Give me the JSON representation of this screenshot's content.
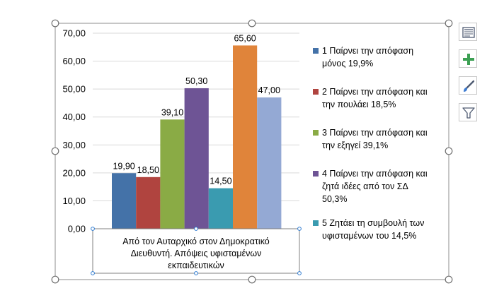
{
  "chart_data": {
    "type": "bar",
    "categories": [
      "Από τον Αυταρχικό στον Δημοκρατικό Διευθυντή. Απόψεις υφισταμένων εκπαιδευτικών"
    ],
    "category_lines": [
      "Από τον Αυταρχικό στον Δημοκρατικό",
      "Διευθυντή. Απόψεις υφισταμένων",
      "εκπαιδευτικών"
    ],
    "series": [
      {
        "name": "1 Παίρνει την απόφαση μόνος 19,9%",
        "legend_lines": [
          "1 Παίρνει την απόφαση",
          "μόνος 19,9%"
        ],
        "values": [
          19.9
        ],
        "label": "19,90",
        "color": "#4472a8"
      },
      {
        "name": "2 Παίρνει την απόφαση και την πουλάει 18,5%",
        "legend_lines": [
          "2 Παίρνει την απόφαση και",
          "την πουλάει 18,5%"
        ],
        "values": [
          18.5
        ],
        "label": "18,50",
        "color": "#b0443f"
      },
      {
        "name": "3 Παίρνει την απόφαση και την εξηγεί 39,1%",
        "legend_lines": [
          "3 Παίρνει την απόφαση και",
          "την εξηγεί 39,1%"
        ],
        "values": [
          39.1
        ],
        "label": "39,10",
        "color": "#8aab45"
      },
      {
        "name": "4 Παίρνει την απόφαση και ζητά ιδέες από τον ΣΔ 50,3%",
        "legend_lines": [
          "4 Παίρνει την απόφαση και",
          "ζητά ιδέες από τον ΣΔ",
          "50,3%"
        ],
        "values": [
          50.3
        ],
        "label": "50,30",
        "color": "#6e5495"
      },
      {
        "name": "5 Ζητάει τη συμβουλή των υφισταμένων του 14,5%",
        "legend_lines": [
          "5 Ζητάει τη συμβουλή των",
          "υφισταμένων του 14,5%"
        ],
        "values": [
          14.5
        ],
        "label": "14,50",
        "color": "#3a9bb0"
      },
      {
        "name": "",
        "values": [
          65.6
        ],
        "label": "65,60",
        "color": "#e0843a"
      },
      {
        "name": "",
        "values": [
          47.0
        ],
        "label": "47,00",
        "color": "#94a9d4"
      }
    ],
    "y_ticks": [
      "0,00",
      "10,00",
      "20,00",
      "30,00",
      "40,00",
      "50,00",
      "60,00",
      "70,00"
    ],
    "ylim": [
      0,
      70
    ],
    "grid": true,
    "legend_position": "right"
  },
  "toolbar": {
    "icons": [
      "chart-elements-icon",
      "plus-icon",
      "brush-icon",
      "filter-icon"
    ]
  }
}
